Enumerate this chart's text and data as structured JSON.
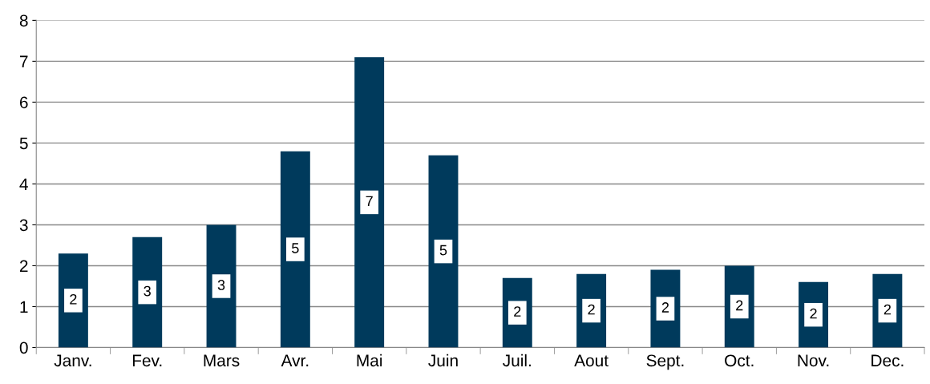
{
  "chart_data": {
    "type": "bar",
    "categories": [
      "Janv.",
      "Fev.",
      "Mars",
      "Avr.",
      "Mai",
      "Juin",
      "Juil.",
      "Aout",
      "Sept.",
      "Oct.",
      "Nov.",
      "Dec."
    ],
    "values": [
      2.3,
      2.7,
      3.0,
      4.8,
      7.1,
      4.7,
      1.7,
      1.8,
      1.9,
      2.0,
      1.6,
      1.8
    ],
    "value_labels": [
      "2",
      "3",
      "3",
      "5",
      "7",
      "5",
      "2",
      "2",
      "2",
      "2",
      "2",
      "2"
    ],
    "color": "#003a5c",
    "ylim": [
      0,
      8
    ],
    "yticks": [
      0,
      1,
      2,
      3,
      4,
      5,
      6,
      7,
      8
    ],
    "grid": "y",
    "legend": false
  }
}
